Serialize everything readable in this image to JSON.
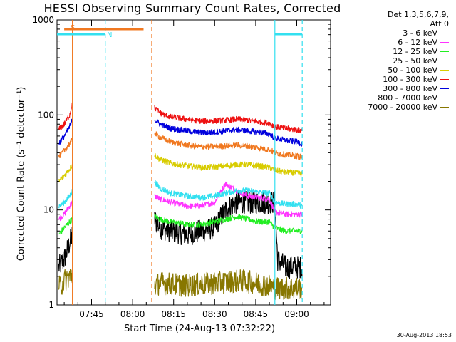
{
  "chart_data": {
    "type": "line",
    "title": "HESSI Observing Summary Count Rates, Corrected",
    "xlabel": "Start Time (24-Aug-13 07:32:22)",
    "ylabel": "Corrected Count Rate (s⁻¹ detector⁻¹)",
    "yscale": "log",
    "xlim_minutes": [
      0,
      100
    ],
    "ylim": [
      1,
      1000
    ],
    "x_ticks": [
      "07:45",
      "08:00",
      "08:15",
      "08:30",
      "08:45",
      "09:00"
    ],
    "y_ticks": [
      "1",
      "10",
      "100",
      "1000"
    ],
    "legend_header": [
      "Det 1,3,5,6,7,9,",
      "Att 0"
    ],
    "legend_position": "top-right (outside plot)",
    "flags": [
      {
        "label": "S",
        "color": "#f07820",
        "start": "07:35",
        "end": "08:04"
      },
      {
        "label": "N",
        "color": "#33e0f0",
        "start": "07:32",
        "end": "07:50"
      },
      {
        "label": "",
        "color": "#33e0f0",
        "start": "08:52",
        "end": "09:02"
      }
    ],
    "event_lines": [
      {
        "time": "07:38",
        "style": "solid",
        "color": "#f07820"
      },
      {
        "time": "07:50",
        "style": "dashed",
        "color": "#33e0f0"
      },
      {
        "time": "08:07",
        "style": "dashed",
        "color": "#f07820"
      },
      {
        "time": "08:52",
        "style": "solid",
        "color": "#33e0f0"
      },
      {
        "time": "09:02",
        "style": "dashed",
        "color": "#33e0f0"
      }
    ],
    "gap": {
      "start": "07:38",
      "end": "08:08"
    },
    "series": [
      {
        "name": "3 - 6 keV",
        "color": "#000000",
        "x": [
          "07:33",
          "07:35",
          "07:37",
          "07:38",
          "08:08",
          "08:10",
          "08:14",
          "08:20",
          "08:25",
          "08:30",
          "08:34",
          "08:38",
          "08:42",
          "08:46",
          "08:50",
          "08:52",
          "08:53",
          "08:56",
          "09:00",
          "09:02"
        ],
        "y": [
          2.5,
          3,
          4.5,
          5.5,
          8,
          6.5,
          6,
          5.5,
          6,
          6.5,
          10,
          12,
          12,
          12,
          12,
          12,
          3,
          2.5,
          2.5,
          2.5
        ]
      },
      {
        "name": "6 - 12 keV",
        "color": "#ff33ff",
        "x": [
          "07:33",
          "07:35",
          "07:37",
          "07:38",
          "08:08",
          "08:10",
          "08:14",
          "08:20",
          "08:25",
          "08:30",
          "08:34",
          "08:38",
          "08:42",
          "08:46",
          "08:50",
          "08:52",
          "08:56",
          "09:00",
          "09:02"
        ],
        "y": [
          8,
          9,
          11,
          12,
          14,
          13,
          12,
          11,
          11,
          12,
          19,
          16,
          14,
          13.5,
          13,
          9.5,
          9,
          9,
          9
        ]
      },
      {
        "name": "12 - 25 keV",
        "color": "#22ee22",
        "x": [
          "07:33",
          "07:35",
          "07:37",
          "07:38",
          "08:08",
          "08:10",
          "08:14",
          "08:20",
          "08:25",
          "08:30",
          "08:34",
          "08:38",
          "08:42",
          "08:46",
          "08:50",
          "08:52",
          "08:56",
          "09:00",
          "09:02"
        ],
        "y": [
          5.5,
          6.5,
          7.5,
          8,
          8.5,
          8,
          7.5,
          7,
          7,
          7.5,
          8,
          8.5,
          8,
          7.5,
          7.5,
          6.5,
          6,
          6,
          6
        ]
      },
      {
        "name": "25 - 50 keV",
        "color": "#33e0f0",
        "x": [
          "07:33",
          "07:35",
          "07:37",
          "07:38",
          "08:08",
          "08:10",
          "08:14",
          "08:20",
          "08:25",
          "08:30",
          "08:34",
          "08:38",
          "08:42",
          "08:46",
          "08:50",
          "08:52",
          "08:56",
          "09:00",
          "09:02"
        ],
        "y": [
          11,
          12,
          14,
          16,
          20,
          17,
          15,
          14,
          13.5,
          14,
          15,
          16,
          16,
          15.5,
          15,
          12,
          11.5,
          11.5,
          11
        ]
      },
      {
        "name": "50 - 100 keV",
        "color": "#d8cc00",
        "x": [
          "07:33",
          "07:35",
          "07:37",
          "07:38",
          "08:08",
          "08:10",
          "08:14",
          "08:20",
          "08:25",
          "08:30",
          "08:34",
          "08:38",
          "08:42",
          "08:46",
          "08:50",
          "08:52",
          "08:56",
          "09:00",
          "09:02"
        ],
        "y": [
          20,
          23,
          27,
          30,
          38,
          34,
          31,
          29,
          28,
          28.5,
          29,
          30,
          30,
          29,
          28,
          26,
          25,
          24.5,
          24
        ]
      },
      {
        "name": "100 - 300 keV",
        "color": "#ee1111",
        "x": [
          "07:33",
          "07:35",
          "07:37",
          "07:38",
          "08:08",
          "08:10",
          "08:14",
          "08:20",
          "08:25",
          "08:30",
          "08:34",
          "08:38",
          "08:42",
          "08:46",
          "08:50",
          "08:52",
          "08:56",
          "09:00",
          "09:02"
        ],
        "y": [
          70,
          80,
          100,
          135,
          120,
          105,
          95,
          90,
          86,
          87,
          88,
          90,
          88,
          85,
          82,
          75,
          72,
          70,
          68
        ]
      },
      {
        "name": "300 - 800 keV",
        "color": "#0000dd",
        "x": [
          "07:33",
          "07:35",
          "07:37",
          "07:38",
          "08:08",
          "08:10",
          "08:14",
          "08:20",
          "08:25",
          "08:30",
          "08:34",
          "08:38",
          "08:42",
          "08:46",
          "08:50",
          "08:52",
          "08:56",
          "09:00",
          "09:02"
        ],
        "y": [
          50,
          60,
          75,
          90,
          90,
          80,
          72,
          68,
          65,
          66,
          68,
          70,
          68,
          66,
          63,
          57,
          54,
          52,
          50
        ]
      },
      {
        "name": "800 - 7000 keV",
        "color": "#f07820",
        "x": [
          "07:33",
          "07:35",
          "07:37",
          "07:38",
          "08:08",
          "08:10",
          "08:14",
          "08:20",
          "08:25",
          "08:30",
          "08:34",
          "08:38",
          "08:42",
          "08:46",
          "08:50",
          "08:52",
          "08:56",
          "09:00",
          "09:02"
        ],
        "y": [
          36,
          42,
          50,
          55,
          65,
          58,
          52,
          48,
          46,
          46.5,
          47,
          48,
          47,
          45,
          43,
          40,
          38,
          37,
          36
        ]
      },
      {
        "name": "7000 - 20000 keV",
        "color": "#887700",
        "x": [
          "07:33",
          "07:35",
          "07:37",
          "07:38",
          "08:08",
          "08:10",
          "08:20",
          "08:30",
          "08:40",
          "08:50",
          "08:52",
          "09:00",
          "09:02"
        ],
        "y": [
          1.5,
          1.8,
          2,
          2,
          1.6,
          1.7,
          1.6,
          1.7,
          1.8,
          1.6,
          1.5,
          1.5,
          1.5
        ]
      }
    ]
  },
  "timestamp": "30-Aug-2013 18:53"
}
